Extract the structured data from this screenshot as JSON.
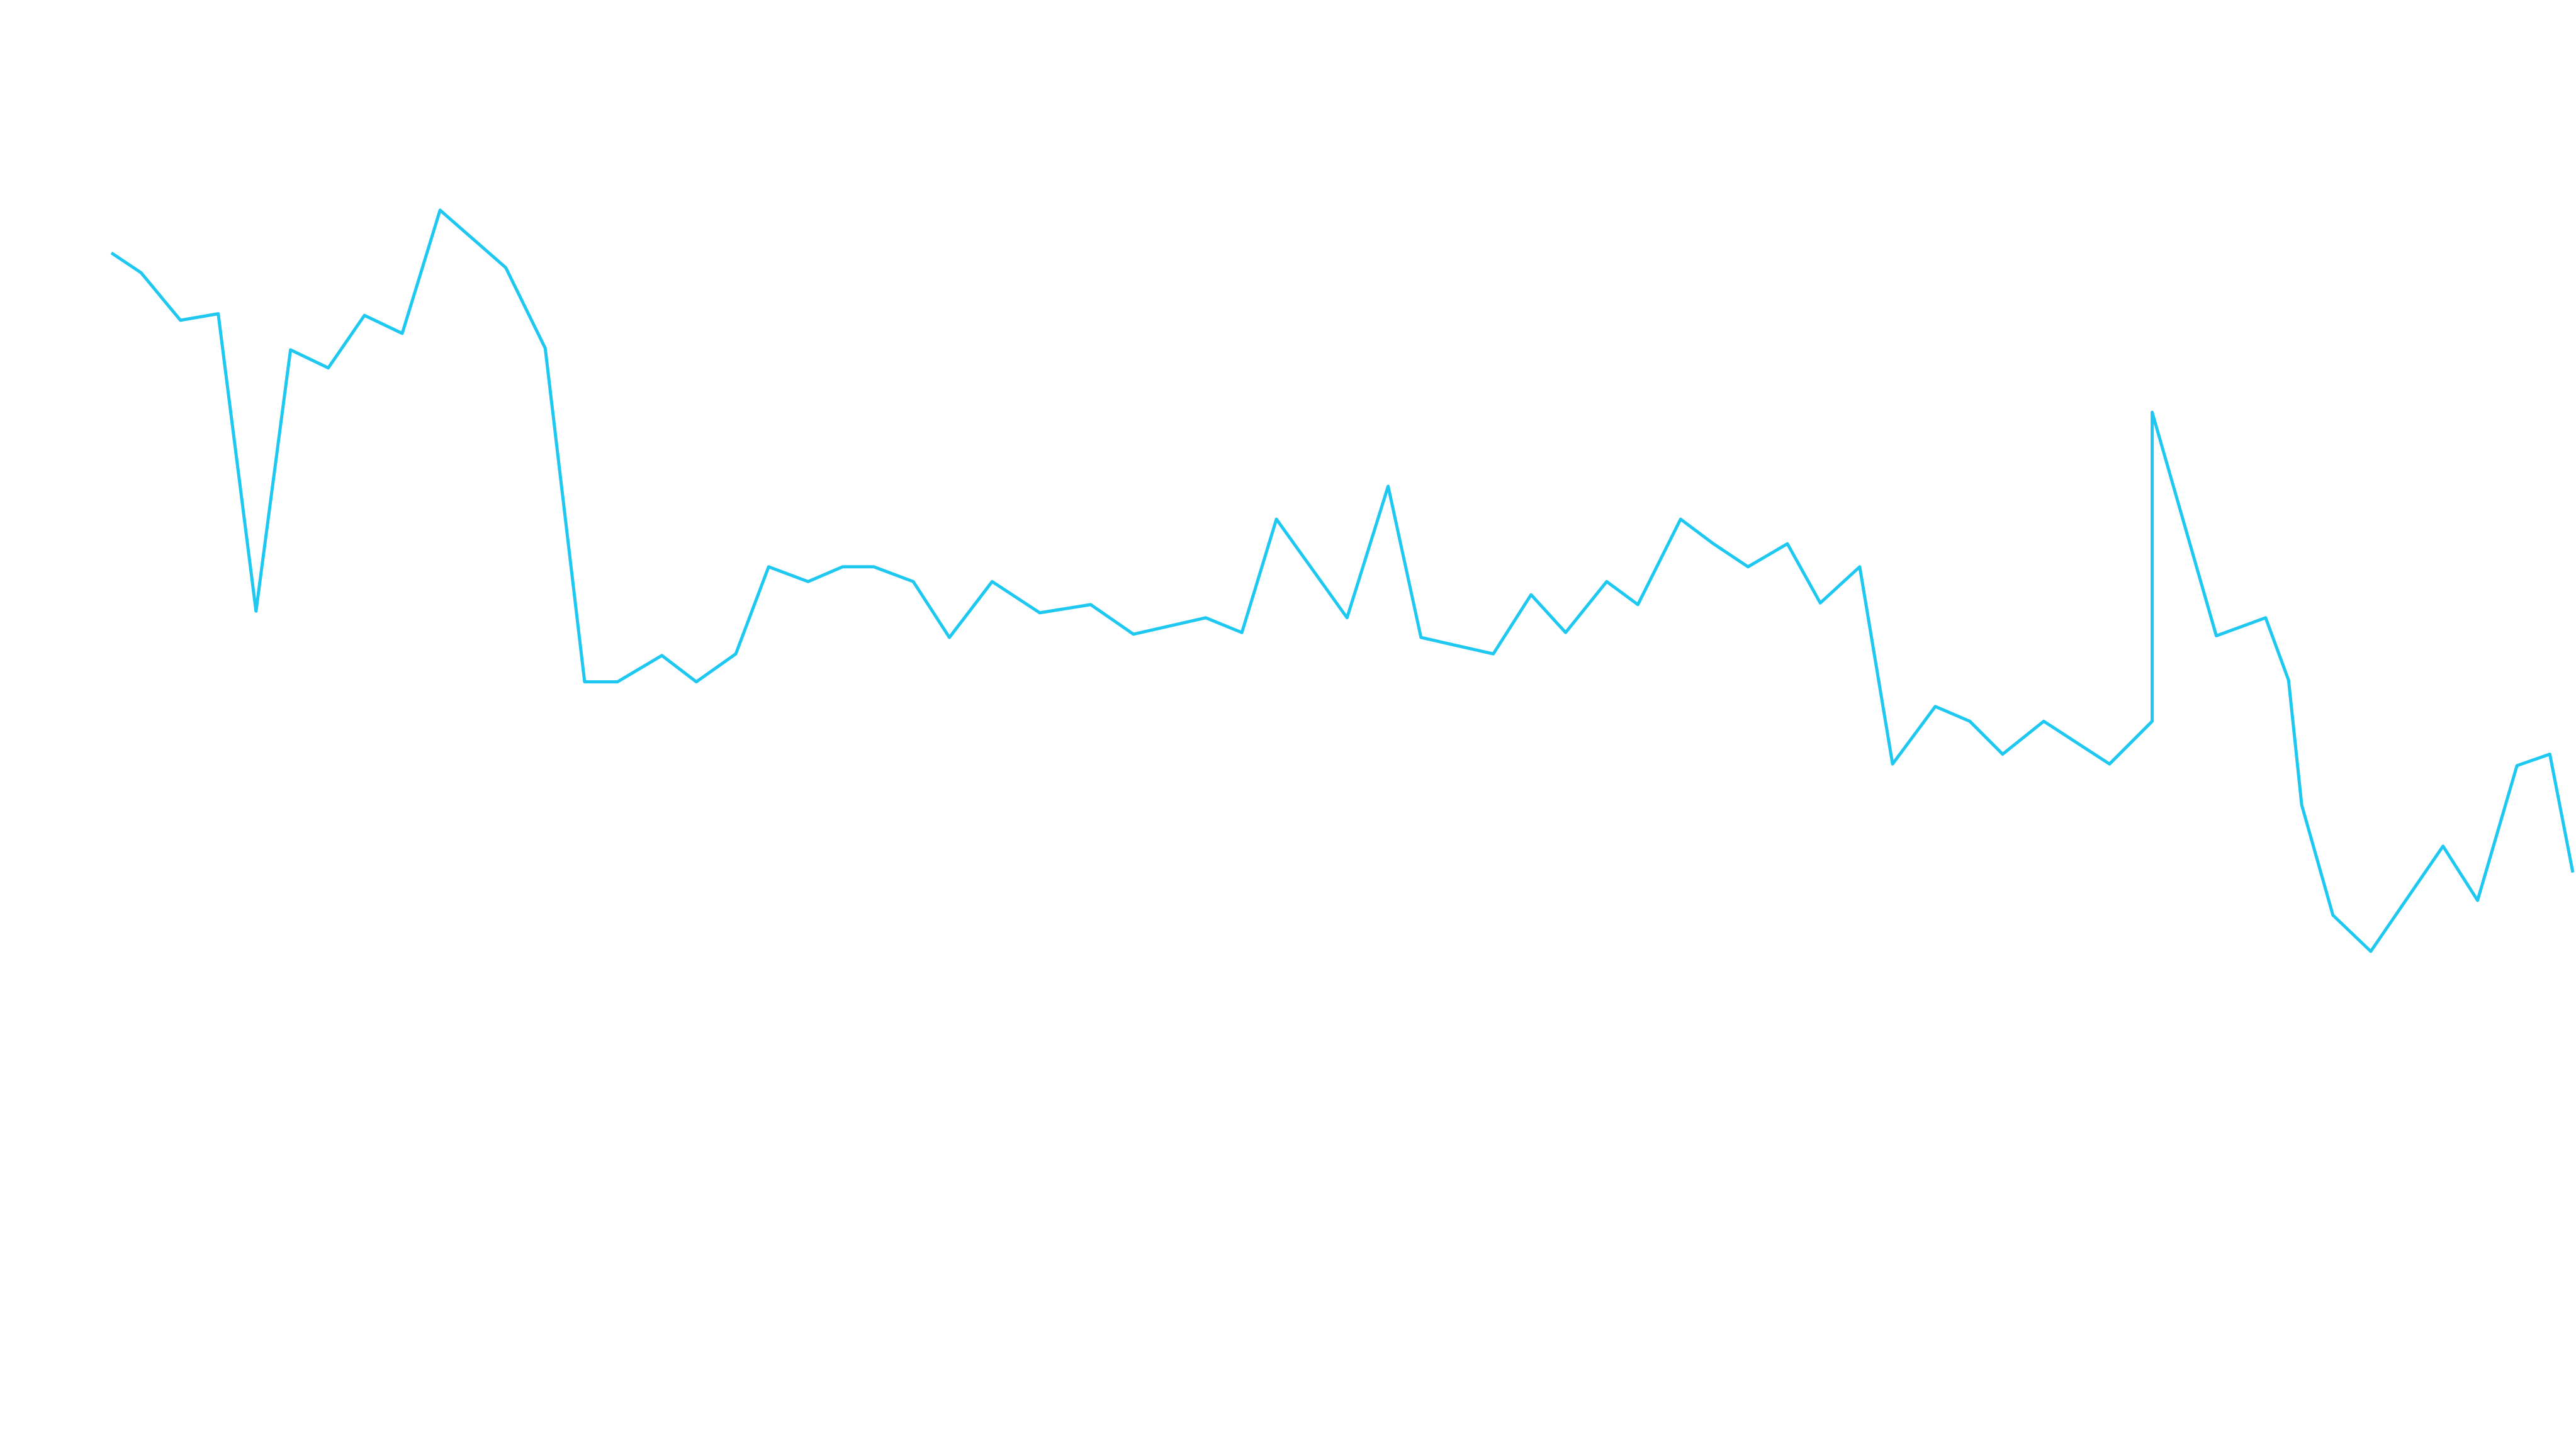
{
  "chart_data": {
    "type": "line",
    "color": "#1ec8f0",
    "x": [
      68,
      86,
      110,
      133,
      156,
      177,
      200,
      222,
      245,
      268,
      308,
      332,
      356,
      376,
      403,
      424,
      448,
      468,
      492,
      513,
      532,
      556,
      578,
      604,
      633,
      664,
      690,
      734,
      756,
      777,
      820,
      845,
      865,
      909,
      932,
      953,
      978,
      997,
      1023,
      1043,
      1064,
      1088,
      1108,
      1132,
      1152,
      1178,
      1199,
      1219,
      1244,
      1284,
      1310,
      1310,
      1349,
      1379,
      1393,
      1401,
      1420,
      1443,
      1487,
      1508,
      1532,
      1552,
      1566
    ],
    "values": [
      722,
      710,
      681,
      685,
      504,
      663,
      652,
      684,
      673,
      748,
      713,
      664,
      461,
      461,
      477,
      461,
      478,
      531,
      522,
      531,
      531,
      522,
      488,
      522,
      503,
      508,
      490,
      500,
      491,
      560,
      500,
      580,
      488,
      478,
      514,
      491,
      522,
      508,
      560,
      545,
      531,
      545,
      509,
      531,
      411,
      446,
      437,
      417,
      437,
      411,
      437,
      625,
      489,
      500,
      462,
      386,
      319,
      297,
      361,
      328,
      410,
      417,
      345
    ]
  }
}
